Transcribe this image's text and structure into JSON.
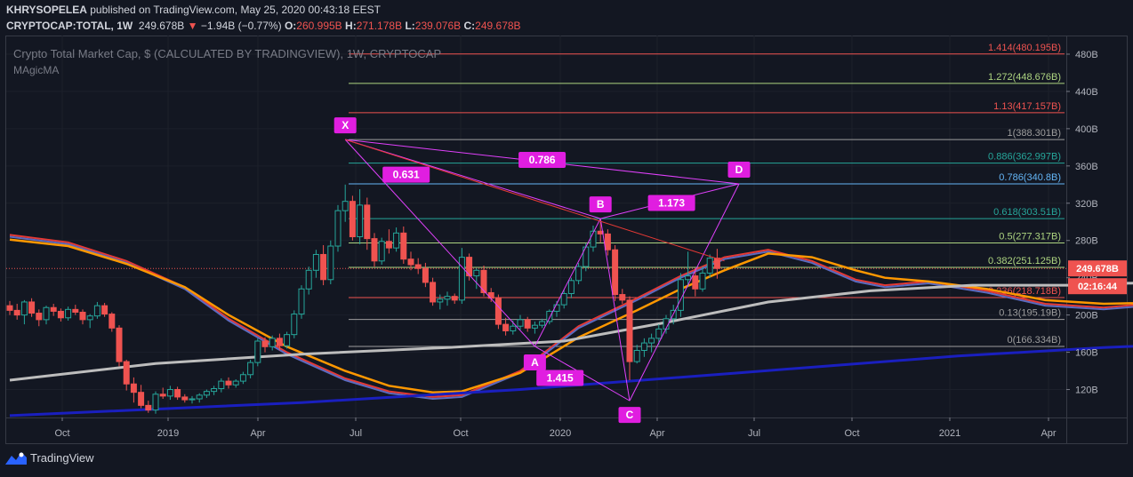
{
  "header": {
    "author": "KHRYSOPELEA",
    "published_text": "published on TradingView.com, May 25, 2020 00:43:18 EEST",
    "symbol": "CRYPTOCAP:TOTAL, 1W",
    "last": "249.678B",
    "change_arrow": "▼",
    "change": "−1.94B (−0.77%)",
    "o_label": "O:",
    "o_value": "260.995B",
    "h_label": "H:",
    "h_value": "271.178B",
    "l_label": "L:",
    "l_value": "239.076B",
    "c_label": "C:",
    "c_value": "249.678B"
  },
  "footer": {
    "brand": "TradingView",
    "logo_icon": "tradingview-logo-icon"
  },
  "chart_data": {
    "type": "candlestick",
    "title": "Crypto Total Market Cap, $ (CALCULATED BY TRADINGVIEW), 1W, CRYPTOCAP",
    "indicator": "MAgicMA",
    "y_axis": {
      "min": 90,
      "max": 500,
      "unit": "B",
      "ticks": [
        "480B",
        "440B",
        "400B",
        "360B",
        "320B",
        "280B",
        "240B",
        "200B",
        "160B",
        "120B"
      ]
    },
    "x_axis": {
      "ticks": [
        "Oct",
        "2019",
        "Apr",
        "Jul",
        "Oct",
        "2020",
        "Apr",
        "Jul",
        "Oct",
        "2021",
        "Apr"
      ]
    },
    "price_label": "249.678B",
    "countdown_label": "02:16:44",
    "fib_levels": [
      {
        "label": "1.414(480.195B)",
        "value": 480.195,
        "color": "#ef5350"
      },
      {
        "label": "1.272(448.676B)",
        "value": 448.676,
        "color": "#aed581"
      },
      {
        "label": "1.13(417.157B)",
        "value": 417.157,
        "color": "#ef5350"
      },
      {
        "label": "1(388.301B)",
        "value": 388.301,
        "color": "#9e9e9e"
      },
      {
        "label": "0.886(362.997B)",
        "value": 362.997,
        "color": "#26a69a"
      },
      {
        "label": "0.786(340.8B)",
        "value": 340.8,
        "color": "#64b5f6"
      },
      {
        "label": "0.618(303.51B)",
        "value": 303.51,
        "color": "#26a69a"
      },
      {
        "label": "0.5(277.317B)",
        "value": 277.317,
        "color": "#aed581"
      },
      {
        "label": "0.382(251.125B)",
        "value": 251.125,
        "color": "#aed581"
      },
      {
        "label": "0.236(218.718B)",
        "value": 218.718,
        "color": "#ef5350"
      },
      {
        "label": "0.13(195.19B)",
        "value": 195.19,
        "color": "#9e9e9e"
      },
      {
        "label": "0(166.334B)",
        "value": 166.334,
        "color": "#9e9e9e"
      }
    ],
    "pattern_points": [
      "X",
      "A",
      "B",
      "C",
      "D"
    ],
    "pattern_ratios": [
      "0.786",
      "0.631",
      "1.173",
      "1.415"
    ],
    "candles": [
      [
        210,
        215,
        200,
        205
      ],
      [
        205,
        212,
        195,
        200
      ],
      [
        200,
        216,
        190,
        214
      ],
      [
        214,
        218,
        198,
        202
      ],
      [
        202,
        206,
        188,
        195
      ],
      [
        195,
        210,
        190,
        208
      ],
      [
        208,
        212,
        199,
        204
      ],
      [
        204,
        207,
        193,
        197
      ],
      [
        197,
        209,
        194,
        206
      ],
      [
        206,
        211,
        200,
        203
      ],
      [
        203,
        206,
        190,
        195
      ],
      [
        195,
        201,
        186,
        199
      ],
      [
        199,
        214,
        196,
        210
      ],
      [
        210,
        213,
        198,
        201
      ],
      [
        201,
        203,
        182,
        186
      ],
      [
        186,
        189,
        145,
        150
      ],
      [
        150,
        152,
        119,
        126
      ],
      [
        126,
        133,
        106,
        117
      ],
      [
        117,
        125,
        100,
        103
      ],
      [
        103,
        108,
        95,
        98
      ],
      [
        98,
        118,
        94,
        115
      ],
      [
        115,
        122,
        110,
        113
      ],
      [
        113,
        124,
        109,
        120
      ],
      [
        120,
        123,
        109,
        112
      ],
      [
        112,
        115,
        106,
        109
      ],
      [
        109,
        113,
        105,
        110
      ],
      [
        110,
        116,
        106,
        114
      ],
      [
        114,
        120,
        111,
        118
      ],
      [
        118,
        124,
        114,
        121
      ],
      [
        121,
        132,
        117,
        129
      ],
      [
        129,
        133,
        121,
        125
      ],
      [
        125,
        131,
        122,
        129
      ],
      [
        129,
        139,
        126,
        136
      ],
      [
        136,
        152,
        132,
        149
      ],
      [
        149,
        175,
        145,
        172
      ],
      [
        172,
        176,
        160,
        166
      ],
      [
        166,
        178,
        162,
        175
      ],
      [
        175,
        180,
        162,
        167
      ],
      [
        167,
        182,
        164,
        179
      ],
      [
        179,
        205,
        175,
        201
      ],
      [
        201,
        232,
        196,
        228
      ],
      [
        228,
        252,
        222,
        248
      ],
      [
        248,
        270,
        240,
        265
      ],
      [
        265,
        275,
        232,
        238
      ],
      [
        238,
        280,
        233,
        274
      ],
      [
        274,
        318,
        268,
        312
      ],
      [
        312,
        340,
        300,
        322
      ],
      [
        322,
        328,
        280,
        284
      ],
      [
        284,
        335,
        276,
        318
      ],
      [
        318,
        326,
        270,
        282
      ],
      [
        282,
        288,
        252,
        258
      ],
      [
        258,
        283,
        254,
        279
      ],
      [
        279,
        292,
        266,
        272
      ],
      [
        272,
        294,
        268,
        288
      ],
      [
        288,
        295,
        255,
        260
      ],
      [
        260,
        268,
        248,
        254
      ],
      [
        254,
        261,
        244,
        250
      ],
      [
        250,
        256,
        230,
        235
      ],
      [
        235,
        240,
        210,
        214
      ],
      [
        214,
        222,
        206,
        217
      ],
      [
        217,
        225,
        210,
        220
      ],
      [
        220,
        223,
        212,
        216
      ],
      [
        216,
        272,
        212,
        262
      ],
      [
        262,
        266,
        237,
        242
      ],
      [
        242,
        250,
        228,
        248
      ],
      [
        248,
        253,
        220,
        224
      ],
      [
        224,
        229,
        214,
        218
      ],
      [
        218,
        222,
        185,
        190
      ],
      [
        190,
        197,
        178,
        183
      ],
      [
        183,
        194,
        179,
        188
      ],
      [
        188,
        200,
        184,
        195
      ],
      [
        195,
        198,
        182,
        186
      ],
      [
        186,
        193,
        180,
        189
      ],
      [
        189,
        196,
        186,
        193
      ],
      [
        193,
        206,
        190,
        204
      ],
      [
        204,
        215,
        198,
        211
      ],
      [
        211,
        227,
        207,
        223
      ],
      [
        223,
        240,
        218,
        237
      ],
      [
        237,
        256,
        233,
        252
      ],
      [
        252,
        277,
        247,
        273
      ],
      [
        273,
        296,
        268,
        290
      ],
      [
        290,
        300,
        278,
        287
      ],
      [
        287,
        292,
        264,
        270
      ],
      [
        270,
        275,
        215,
        222
      ],
      [
        222,
        228,
        212,
        216
      ],
      [
        216,
        220,
        130,
        150
      ],
      [
        150,
        168,
        148,
        162
      ],
      [
        162,
        175,
        155,
        170
      ],
      [
        170,
        180,
        160,
        175
      ],
      [
        175,
        190,
        168,
        185
      ],
      [
        185,
        200,
        180,
        196
      ],
      [
        196,
        211,
        190,
        205
      ],
      [
        205,
        245,
        198,
        238
      ],
      [
        238,
        268,
        230,
        242
      ],
      [
        242,
        250,
        220,
        228
      ],
      [
        228,
        252,
        225,
        245
      ],
      [
        245,
        265,
        240,
        261
      ],
      [
        261,
        271,
        239,
        250
      ]
    ],
    "moving_averages": [
      {
        "name": "ma-red",
        "color": "#e53935",
        "width": 2,
        "points": [
          [
            0,
            286
          ],
          [
            8,
            278
          ],
          [
            16,
            258
          ],
          [
            24,
            230
          ],
          [
            30,
            196
          ],
          [
            38,
            160
          ],
          [
            46,
            132
          ],
          [
            52,
            118
          ],
          [
            58,
            112
          ],
          [
            62,
            114
          ],
          [
            70,
            140
          ],
          [
            78,
            188
          ],
          [
            86,
            218
          ],
          [
            92,
            242
          ],
          [
            98,
            262
          ],
          [
            104,
            270
          ],
          [
            110,
            258
          ],
          [
            116,
            238
          ],
          [
            120,
            232
          ],
          [
            126,
            236
          ],
          [
            134,
            226
          ],
          [
            142,
            212
          ],
          [
            150,
            208
          ],
          [
            156,
            212
          ],
          [
            164,
            222
          ],
          [
            170,
            238
          ],
          [
            176,
            256
          ],
          [
            182,
            262
          ],
          [
            188,
            252
          ],
          [
            196,
            224
          ],
          [
            200,
            226
          ]
        ]
      },
      {
        "name": "ma-blue",
        "color": "#5c6bc0",
        "width": 2,
        "points": [
          [
            0,
            284
          ],
          [
            8,
            276
          ],
          [
            16,
            256
          ],
          [
            24,
            228
          ],
          [
            30,
            194
          ],
          [
            38,
            158
          ],
          [
            46,
            130
          ],
          [
            52,
            116
          ],
          [
            58,
            110
          ],
          [
            62,
            112
          ],
          [
            70,
            138
          ],
          [
            78,
            186
          ],
          [
            86,
            216
          ],
          [
            92,
            240
          ],
          [
            98,
            260
          ],
          [
            104,
            268
          ],
          [
            110,
            256
          ],
          [
            116,
            236
          ],
          [
            120,
            230
          ],
          [
            126,
            234
          ],
          [
            134,
            224
          ],
          [
            142,
            210
          ],
          [
            150,
            206
          ],
          [
            156,
            210
          ],
          [
            164,
            220
          ],
          [
            170,
            236
          ],
          [
            176,
            254
          ],
          [
            182,
            260
          ],
          [
            188,
            250
          ],
          [
            196,
            222
          ],
          [
            200,
            224
          ]
        ]
      },
      {
        "name": "ma-orange",
        "color": "#ff9800",
        "width": 2.5,
        "points": [
          [
            0,
            281
          ],
          [
            8,
            274
          ],
          [
            16,
            255
          ],
          [
            24,
            230
          ],
          [
            30,
            200
          ],
          [
            38,
            166
          ],
          [
            46,
            140
          ],
          [
            52,
            124
          ],
          [
            58,
            117
          ],
          [
            62,
            118
          ],
          [
            70,
            138
          ],
          [
            78,
            176
          ],
          [
            86,
            205
          ],
          [
            92,
            228
          ],
          [
            98,
            248
          ],
          [
            104,
            266
          ],
          [
            110,
            262
          ],
          [
            116,
            248
          ],
          [
            120,
            240
          ],
          [
            126,
            236
          ],
          [
            134,
            228
          ],
          [
            142,
            216
          ],
          [
            150,
            212
          ],
          [
            156,
            213
          ],
          [
            164,
            218
          ],
          [
            170,
            228
          ],
          [
            176,
            236
          ],
          [
            182,
            230
          ],
          [
            188,
            222
          ],
          [
            196,
            230
          ],
          [
            200,
            232
          ]
        ]
      },
      {
        "name": "ma-white",
        "color": "#bdbdbd",
        "width": 3,
        "points": [
          [
            0,
            130
          ],
          [
            20,
            148
          ],
          [
            40,
            158
          ],
          [
            60,
            165
          ],
          [
            76,
            172
          ],
          [
            90,
            192
          ],
          [
            104,
            214
          ],
          [
            118,
            226
          ],
          [
            132,
            232
          ],
          [
            146,
            232
          ],
          [
            160,
            236
          ],
          [
            176,
            241
          ],
          [
            192,
            246
          ],
          [
            200,
            247
          ]
        ]
      },
      {
        "name": "ma-navy",
        "color": "#1a1fbf",
        "width": 3,
        "points": [
          [
            0,
            92
          ],
          [
            40,
            106
          ],
          [
            70,
            120
          ],
          [
            100,
            138
          ],
          [
            130,
            156
          ],
          [
            150,
            165
          ],
          [
            180,
            175
          ],
          [
            200,
            181
          ]
        ]
      }
    ]
  }
}
